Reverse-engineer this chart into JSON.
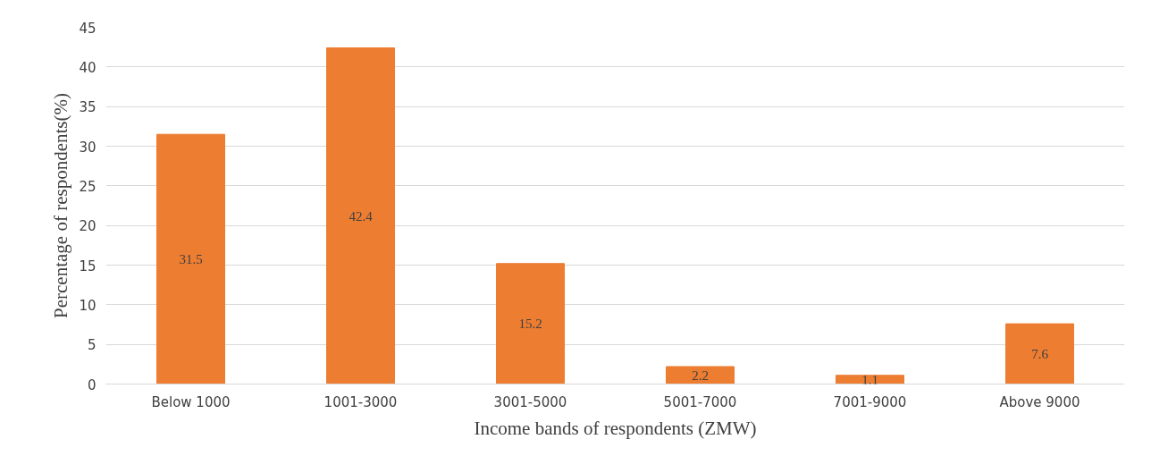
{
  "chart_data": {
    "type": "bar",
    "xlabel": "Income bands of respondents (ZMW)",
    "ylabel": "Percentage of respondents(%)",
    "categories": [
      "Below 1000",
      "1001-3000",
      "3001-5000",
      "5001-7000",
      "7001-9000",
      "Above 9000"
    ],
    "values": [
      31.5,
      42.4,
      15.2,
      2.2,
      1.1,
      7.6
    ],
    "color": "#ed7d31",
    "ylim": [
      0,
      45
    ],
    "yticks": [
      0,
      5,
      10,
      15,
      20,
      25,
      30,
      35,
      40,
      45
    ],
    "grid": "y",
    "data_labels": true
  }
}
